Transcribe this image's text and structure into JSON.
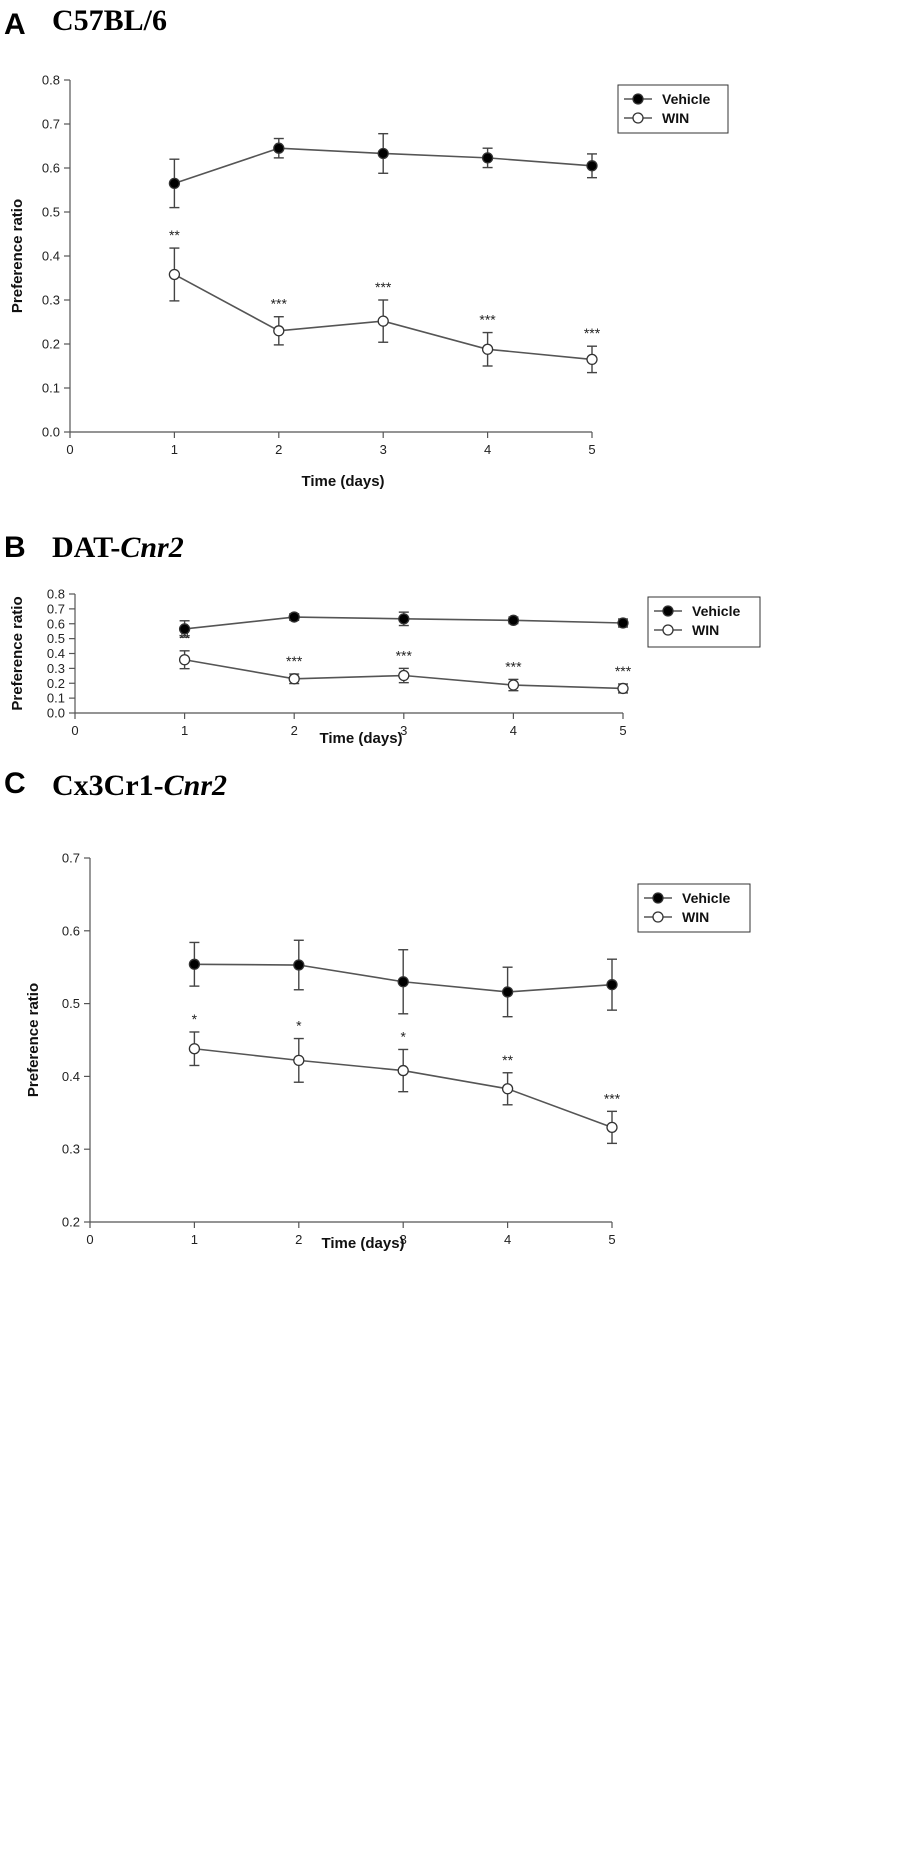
{
  "chart_data": [
    {
      "panel": "A",
      "title": "C57BL/6",
      "title_italic": "",
      "type": "line",
      "xlabel": "Time (days)",
      "ylabel": "Preference ratio",
      "xlim": [
        0,
        5
      ],
      "ylim": [
        0.0,
        0.8
      ],
      "xticks": [
        "0",
        "1",
        "2",
        "3",
        "4",
        "5"
      ],
      "yticks": [
        "0.0",
        "0.1",
        "0.2",
        "0.3",
        "0.4",
        "0.5",
        "0.6",
        "0.7",
        "0.8"
      ],
      "x": [
        1,
        2,
        3,
        4,
        5
      ],
      "legend_position": "top-right",
      "series": [
        {
          "name": "Vehicle",
          "marker": "filled-circle",
          "values": [
            0.565,
            0.645,
            0.633,
            0.623,
            0.605
          ],
          "errors": [
            0.055,
            0.022,
            0.045,
            0.022,
            0.027
          ]
        },
        {
          "name": "WIN",
          "marker": "open-circle",
          "values": [
            0.358,
            0.23,
            0.252,
            0.188,
            0.165
          ],
          "errors": [
            0.06,
            0.032,
            0.048,
            0.038,
            0.03
          ]
        }
      ],
      "annotations": [
        "**",
        "***",
        "***",
        "***",
        "***"
      ]
    },
    {
      "panel": "B",
      "title": "DAT-",
      "title_italic": "Cnr2",
      "type": "line",
      "xlabel": "Time (days)",
      "ylabel": "Preference ratio",
      "xlim": [
        0,
        5
      ],
      "ylim": [
        0.0,
        0.8
      ],
      "xticks": [
        "0",
        "1",
        "2",
        "3",
        "4",
        "5"
      ],
      "yticks": [
        "0.0",
        "0.1",
        "0.2",
        "0.3",
        "0.4",
        "0.5",
        "0.6",
        "0.7",
        "0.8"
      ],
      "x": [
        1,
        2,
        3,
        4,
        5
      ],
      "legend_position": "top-right",
      "series": [
        {
          "name": "Vehicle",
          "marker": "filled-circle",
          "values": [
            0.565,
            0.645,
            0.633,
            0.623,
            0.605
          ],
          "errors": [
            0.055,
            0.022,
            0.045,
            0.022,
            0.027
          ]
        },
        {
          "name": "WIN",
          "marker": "open-circle",
          "values": [
            0.358,
            0.23,
            0.252,
            0.188,
            0.165
          ],
          "errors": [
            0.06,
            0.032,
            0.048,
            0.038,
            0.03
          ]
        }
      ],
      "annotations": [
        "**",
        "***",
        "***",
        "***",
        "***"
      ]
    },
    {
      "panel": "C",
      "title": "Cx3Cr1-",
      "title_italic": "Cnr2",
      "type": "line",
      "xlabel": "Time (days)",
      "ylabel": "Preference ratio",
      "xlim": [
        0,
        5
      ],
      "ylim": [
        0.2,
        0.7
      ],
      "xticks": [
        "0",
        "1",
        "2",
        "3",
        "4",
        "5"
      ],
      "yticks": [
        "0.2",
        "0.3",
        "0.4",
        "0.5",
        "0.6",
        "0.7"
      ],
      "x": [
        1,
        2,
        3,
        4,
        5
      ],
      "legend_position": "top-right",
      "series": [
        {
          "name": "Vehicle",
          "marker": "filled-circle",
          "values": [
            0.554,
            0.553,
            0.53,
            0.516,
            0.526
          ],
          "errors": [
            0.03,
            0.034,
            0.044,
            0.034,
            0.035
          ]
        },
        {
          "name": "WIN",
          "marker": "open-circle",
          "values": [
            0.438,
            0.422,
            0.408,
            0.383,
            0.33
          ],
          "errors": [
            0.023,
            0.03,
            0.029,
            0.022,
            0.022
          ]
        }
      ],
      "annotations": [
        "*",
        "*",
        "*",
        "**",
        "***"
      ]
    }
  ]
}
